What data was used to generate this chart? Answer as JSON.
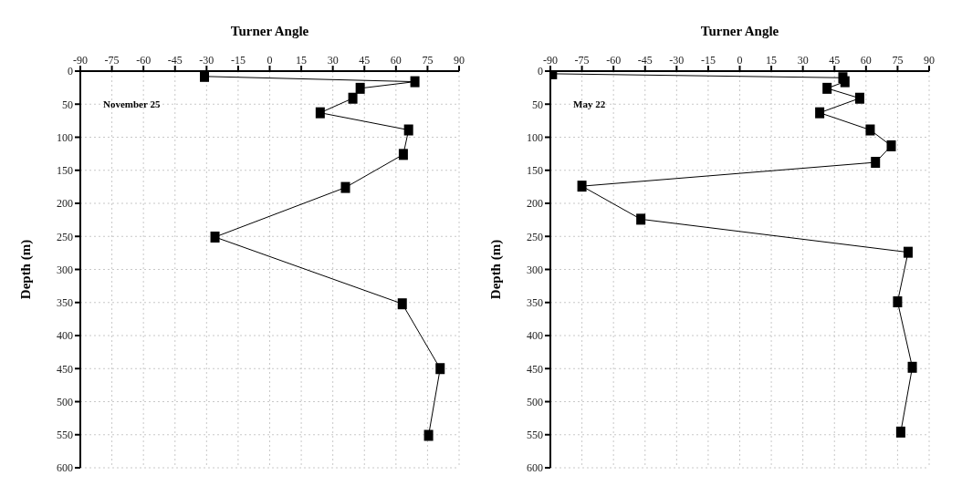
{
  "chart_data": [
    {
      "type": "line",
      "xlabel": "Turner Angle",
      "ylabel": "Depth (m)",
      "annotations": [
        "November 25"
      ],
      "series": [
        {
          "color": "#000000",
          "x": [
            -31,
            69,
            43,
            39.5,
            24,
            66,
            63.5,
            36,
            -26,
            63,
            81,
            75.5
          ],
          "values": [
            8,
            16,
            26,
            41,
            63,
            89,
            126,
            176,
            251,
            352,
            450,
            551
          ]
        }
      ],
      "xlim": [
        -90,
        90
      ],
      "xticks": [
        -90,
        -75,
        -60,
        -45,
        -30,
        -15,
        0,
        15,
        30,
        45,
        60,
        75,
        90
      ],
      "ylim": [
        600,
        0
      ],
      "yticks": [
        0,
        50,
        100,
        150,
        200,
        250,
        300,
        350,
        400,
        450,
        500,
        550,
        600
      ],
      "grid": true,
      "marker": "square",
      "legend": false
    },
    {
      "type": "line",
      "xlabel": "Turner Angle",
      "ylabel": "Depth (m)",
      "annotations": [
        "May 22"
      ],
      "series": [
        {
          "color": "#000000",
          "x": [
            -89,
            49,
            50,
            41.5,
            57,
            38,
            62,
            72,
            64.5,
            -75,
            -47,
            80,
            75,
            82,
            76.5
          ],
          "values": [
            4,
            10,
            16,
            26,
            41,
            63,
            89,
            113,
            138,
            174,
            224,
            274,
            349,
            448,
            546
          ]
        }
      ],
      "xlim": [
        -90,
        90
      ],
      "xticks": [
        -90,
        -75,
        -60,
        -45,
        -30,
        -15,
        0,
        15,
        30,
        45,
        60,
        75,
        90
      ],
      "ylim": [
        600,
        0
      ],
      "yticks": [
        0,
        50,
        100,
        150,
        200,
        250,
        300,
        350,
        400,
        450,
        500,
        550,
        600
      ],
      "grid": true,
      "marker": "square",
      "legend": false
    }
  ]
}
